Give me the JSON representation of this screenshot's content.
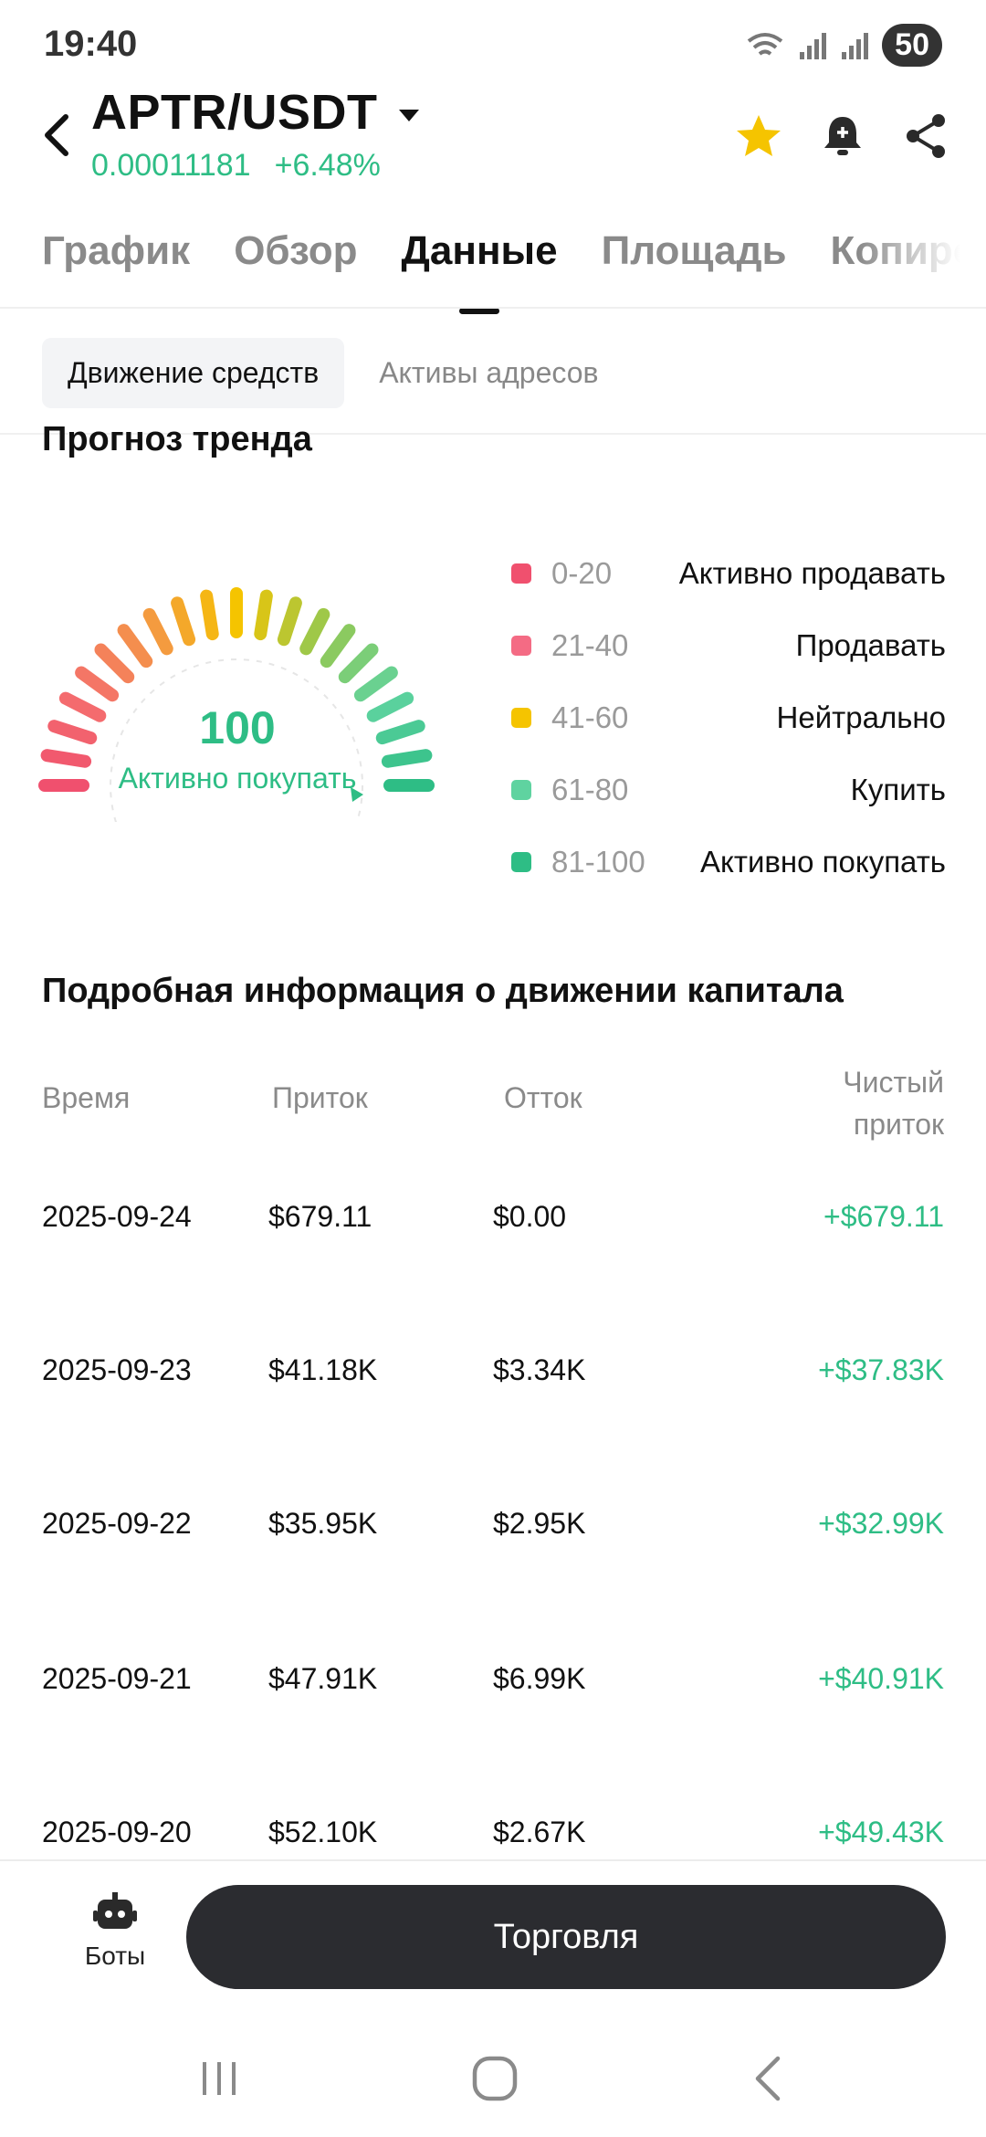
{
  "status_bar": {
    "time": "19:40",
    "battery": "50"
  },
  "header": {
    "pair": "APTR/USDT",
    "price": "0.00011181",
    "change": "+6.48%",
    "colors": {
      "up": "#2ebd85",
      "star": "#f5c400"
    }
  },
  "tabs": [
    {
      "label": "График"
    },
    {
      "label": "Обзор"
    },
    {
      "label": "Данные",
      "active": true
    },
    {
      "label": "Площадь"
    },
    {
      "label": "Копиро"
    }
  ],
  "segment": {
    "left": "Движение средств",
    "right": "Активы адресов"
  },
  "trend": {
    "title": "Прогноз тренда",
    "score": "100",
    "score_label": "Активно покупать",
    "legend": [
      {
        "range": "0-20",
        "label": "Активно продавать",
        "color": "#f0506e"
      },
      {
        "range": "21-40",
        "label": "Продавать",
        "color": "#f46b84"
      },
      {
        "range": "41-60",
        "label": "Нейтрально",
        "color": "#f5c400"
      },
      {
        "range": "61-80",
        "label": "Купить",
        "color": "#5fd3a0"
      },
      {
        "range": "81-100",
        "label": "Активно покупать",
        "color": "#2ebd85"
      }
    ]
  },
  "capital": {
    "title": "Подробная информация о движении капитала",
    "headers": {
      "time": "Время",
      "inflow": "Приток",
      "outflow": "Отток",
      "net": "Чистый приток"
    },
    "net_header_lines": [
      "Чистый",
      "приток"
    ],
    "rows": [
      {
        "date": "2025-09-24",
        "inflow": "$679.11",
        "outflow": "$0.00",
        "net": "+$679.11"
      },
      {
        "date": "2025-09-23",
        "inflow": "$41.18K",
        "outflow": "$3.34K",
        "net": "+$37.83K"
      },
      {
        "date": "2025-09-22",
        "inflow": "$35.95K",
        "outflow": "$2.95K",
        "net": "+$32.99K"
      },
      {
        "date": "2025-09-21",
        "inflow": "$47.91K",
        "outflow": "$6.99K",
        "net": "+$40.91K"
      },
      {
        "date": "2025-09-20",
        "inflow": "$52.10K",
        "outflow": "$2.67K",
        "net": "+$49.43K"
      }
    ]
  },
  "bottom": {
    "bots_label": "Боты",
    "trade_label": "Торговля"
  }
}
